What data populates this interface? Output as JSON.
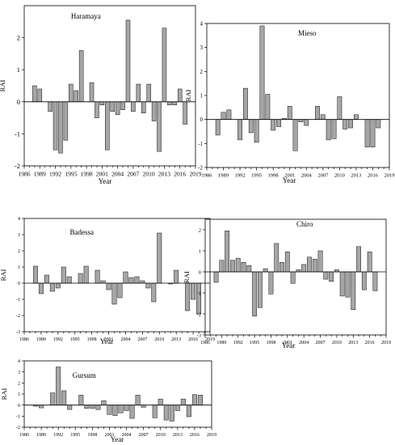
{
  "chart_data": [
    {
      "type": "bar",
      "title": "Haramaya",
      "xlabel": "Year",
      "ylabel": "RAI",
      "xlim": [
        1986,
        2019
      ],
      "ylim": [
        -2,
        3
      ],
      "xticks": [
        "1986",
        "1989",
        "1992",
        "1995",
        "1998",
        "2001",
        "2004",
        "2007",
        "2010",
        "2013",
        "2016",
        "2019"
      ],
      "yticks": [
        "-2",
        "-1",
        "0",
        "1",
        "2"
      ],
      "x": [
        1988,
        1989,
        1990,
        1991,
        1992,
        1993,
        1994,
        1995,
        1996,
        1997,
        1998,
        1999,
        2000,
        2001,
        2002,
        2003,
        2004,
        2005,
        2006,
        2007,
        2008,
        2009,
        2010,
        2011,
        2012,
        2013,
        2014,
        2015,
        2016,
        2017
      ],
      "values": [
        0.5,
        0.4,
        0.0,
        -0.3,
        -1.5,
        -1.6,
        -1.2,
        0.55,
        0.35,
        1.6,
        0.0,
        0.6,
        -0.5,
        -0.1,
        -1.5,
        -0.3,
        -0.4,
        -0.25,
        2.55,
        -0.3,
        0.55,
        -0.35,
        0.55,
        -0.6,
        -1.55,
        2.3,
        -0.1,
        -0.1,
        0.4,
        -0.7
      ]
    },
    {
      "type": "bar",
      "title": "Mieso",
      "xlabel": "Year",
      "ylabel": "RAI",
      "xlim": [
        1986,
        2019
      ],
      "ylim": [
        -2,
        4
      ],
      "xticks": [
        "1986",
        "1989",
        "1992",
        "1995",
        "1998",
        "2001",
        "2004",
        "2007",
        "2010",
        "2013",
        "2016",
        "2019"
      ],
      "yticks": [
        "-2",
        "-1",
        "0",
        "1",
        "2",
        "3",
        "4"
      ],
      "x": [
        1988,
        1989,
        1990,
        1991,
        1992,
        1993,
        1994,
        1995,
        1996,
        1997,
        1998,
        1999,
        2000,
        2001,
        2002,
        2003,
        2004,
        2005,
        2006,
        2007,
        2008,
        2009,
        2010,
        2011,
        2012,
        2013,
        2014,
        2015,
        2016,
        2017
      ],
      "values": [
        -0.65,
        0.3,
        0.4,
        0.0,
        -0.85,
        1.3,
        -0.55,
        -0.95,
        3.9,
        1.05,
        -0.45,
        -0.3,
        0.05,
        0.55,
        -1.3,
        -0.1,
        -0.25,
        0.0,
        0.55,
        0.2,
        -0.85,
        -0.8,
        0.95,
        -0.4,
        -0.35,
        0.2,
        0.0,
        -1.15,
        -1.15,
        -0.35
      ]
    },
    {
      "type": "bar",
      "title": "Badessa",
      "xlabel": "Year",
      "ylabel": "RAI",
      "xlim": [
        1986,
        2019
      ],
      "ylim": [
        -3,
        4
      ],
      "xticks": [
        "1986",
        "1989",
        "1992",
        "1995",
        "1998",
        "2001",
        "2004",
        "2007",
        "2010",
        "2013",
        "2016",
        "2019"
      ],
      "yticks": [
        "-3",
        "-2",
        "-1",
        "0",
        "1",
        "2",
        "3",
        "4"
      ],
      "x": [
        1988,
        1989,
        1990,
        1991,
        1992,
        1993,
        1994,
        1995,
        1996,
        1997,
        1998,
        1999,
        2000,
        2001,
        2002,
        2003,
        2004,
        2005,
        2006,
        2007,
        2008,
        2009,
        2010,
        2011,
        2012,
        2013,
        2014,
        2015,
        2016,
        2017
      ],
      "values": [
        1.05,
        -0.65,
        0.5,
        -0.5,
        -0.3,
        1.0,
        0.4,
        0.0,
        0.6,
        1.05,
        0.0,
        0.8,
        0.15,
        -0.4,
        -1.3,
        -0.9,
        0.7,
        0.35,
        0.4,
        0.15,
        -0.3,
        -1.15,
        3.1,
        0.0,
        -0.05,
        0.8,
        0.0,
        -1.7,
        -1.0,
        -1.9
      ]
    },
    {
      "type": "bar",
      "title": "Chiro",
      "xlabel": "Year",
      "ylabel": "RAI",
      "xlim": [
        1986,
        2019
      ],
      "ylim": [
        -3,
        2.5
      ],
      "xticks": [
        "1986",
        "1989",
        "1992",
        "1995",
        "1998",
        "2001",
        "2004",
        "2007",
        "2010",
        "2013",
        "2016",
        "2019"
      ],
      "yticks": [
        "-3",
        "-2",
        "-1",
        "0",
        "1",
        "2"
      ],
      "x": [
        1988,
        1989,
        1990,
        1991,
        1992,
        1993,
        1994,
        1995,
        1996,
        1997,
        1998,
        1999,
        2000,
        2001,
        2002,
        2003,
        2004,
        2005,
        2006,
        2007,
        2008,
        2009,
        2010,
        2011,
        2012,
        2013,
        2014,
        2015,
        2016,
        2017
      ],
      "values": [
        -0.5,
        0.55,
        1.95,
        0.55,
        0.65,
        0.45,
        0.3,
        -2.1,
        -1.7,
        0.15,
        -1.05,
        1.35,
        0.45,
        0.95,
        -0.55,
        0.1,
        0.35,
        0.7,
        0.6,
        1.0,
        -0.35,
        -0.45,
        0.1,
        -1.15,
        -1.2,
        -1.8,
        1.2,
        -0.85,
        0.95,
        -0.9
      ]
    },
    {
      "type": "bar",
      "title": "Gursum",
      "xlabel": "Year",
      "ylabel": "RAI",
      "xlim": [
        1986,
        2019
      ],
      "ylim": [
        -2,
        4
      ],
      "xticks": [
        "1986",
        "1989",
        "1992",
        "1995",
        "1998",
        "2001",
        "2004",
        "2007",
        "2010",
        "2013",
        "2016",
        "2019"
      ],
      "yticks": [
        "-2",
        "-1",
        "0",
        "1",
        "2",
        "3",
        "4"
      ],
      "x": [
        1988,
        1989,
        1990,
        1991,
        1992,
        1993,
        1994,
        1995,
        1996,
        1997,
        1998,
        1999,
        2000,
        2001,
        2002,
        2003,
        2004,
        2005,
        2006,
        2007,
        2008,
        2009,
        2010,
        2011,
        2012,
        2013,
        2014,
        2015,
        2016,
        2017
      ],
      "values": [
        -0.1,
        -0.25,
        0.0,
        1.1,
        3.45,
        1.3,
        -0.4,
        0.0,
        0.9,
        -0.3,
        -0.3,
        -0.4,
        0.4,
        -0.85,
        -0.95,
        -0.7,
        -0.5,
        -1.2,
        0.9,
        -0.2,
        0.0,
        -1.15,
        0.55,
        -1.35,
        -1.45,
        -0.5,
        0.55,
        -1.05,
        0.95,
        0.9
      ]
    }
  ]
}
